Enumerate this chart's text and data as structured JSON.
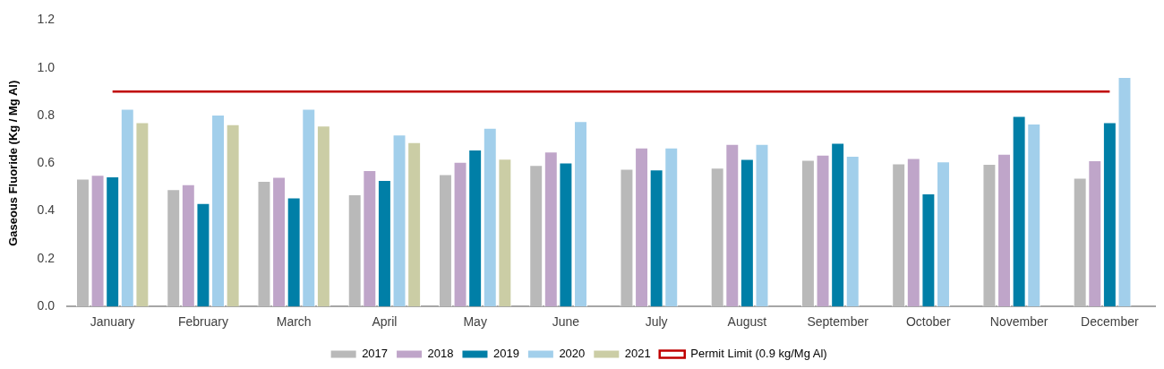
{
  "chart_data": {
    "type": "bar",
    "ylabel": "Gaseous Fluoride (Kg / Mg Al)",
    "categories": [
      "January",
      "February",
      "March",
      "April",
      "May",
      "June",
      "July",
      "August",
      "September",
      "October",
      "November",
      "December"
    ],
    "series": [
      {
        "name": "2017",
        "color": "#b9b9b9",
        "values": [
          0.535,
          0.491,
          0.526,
          0.47,
          0.554,
          0.593,
          0.577,
          0.581,
          0.614,
          0.599,
          0.597,
          0.539
        ]
      },
      {
        "name": "2018",
        "color": "#bfa5c9",
        "values": [
          0.551,
          0.512,
          0.543,
          0.571,
          0.606,
          0.649,
          0.666,
          0.681,
          0.636,
          0.622,
          0.64,
          0.612
        ]
      },
      {
        "name": "2019",
        "color": "#007fa7",
        "values": [
          0.545,
          0.433,
          0.457,
          0.53,
          0.657,
          0.603,
          0.574,
          0.618,
          0.686,
          0.474,
          0.798,
          0.772
        ]
      },
      {
        "name": "2020",
        "color": "#a2cfeb",
        "values": [
          0.828,
          0.804,
          0.828,
          0.72,
          0.748,
          0.777,
          0.666,
          0.681,
          0.631,
          0.608,
          0.766,
          0.961
        ]
      },
      {
        "name": "2021",
        "color": "#cbcda5",
        "values": [
          0.772,
          0.763,
          0.758,
          0.688,
          0.619,
          null,
          null,
          null,
          null,
          null,
          null,
          null
        ]
      },
      {
        "name": "Permit Limit (0.9 kg/Mg Al)",
        "type": "line",
        "color": "#c00000",
        "values": [
          0.9,
          0.9,
          0.9,
          0.9,
          0.9,
          0.9,
          0.9,
          0.9,
          0.9,
          0.9,
          0.9,
          0.9
        ]
      }
    ],
    "ylim": [
      0,
      1.2
    ],
    "yticks": [
      {
        "value": 0,
        "label": "0.0"
      },
      {
        "value": 0.2,
        "label": "0.2"
      },
      {
        "value": 0.4,
        "label": "0.4"
      },
      {
        "value": 0.6,
        "label": "0.6"
      },
      {
        "value": 0.8,
        "label": "0.8"
      },
      {
        "value": 1,
        "label": "1.0"
      },
      {
        "value": 1.2,
        "label": "1.2"
      }
    ],
    "grid": false,
    "legend": "bottom",
    "marker": "none",
    "line_style": "solid"
  }
}
